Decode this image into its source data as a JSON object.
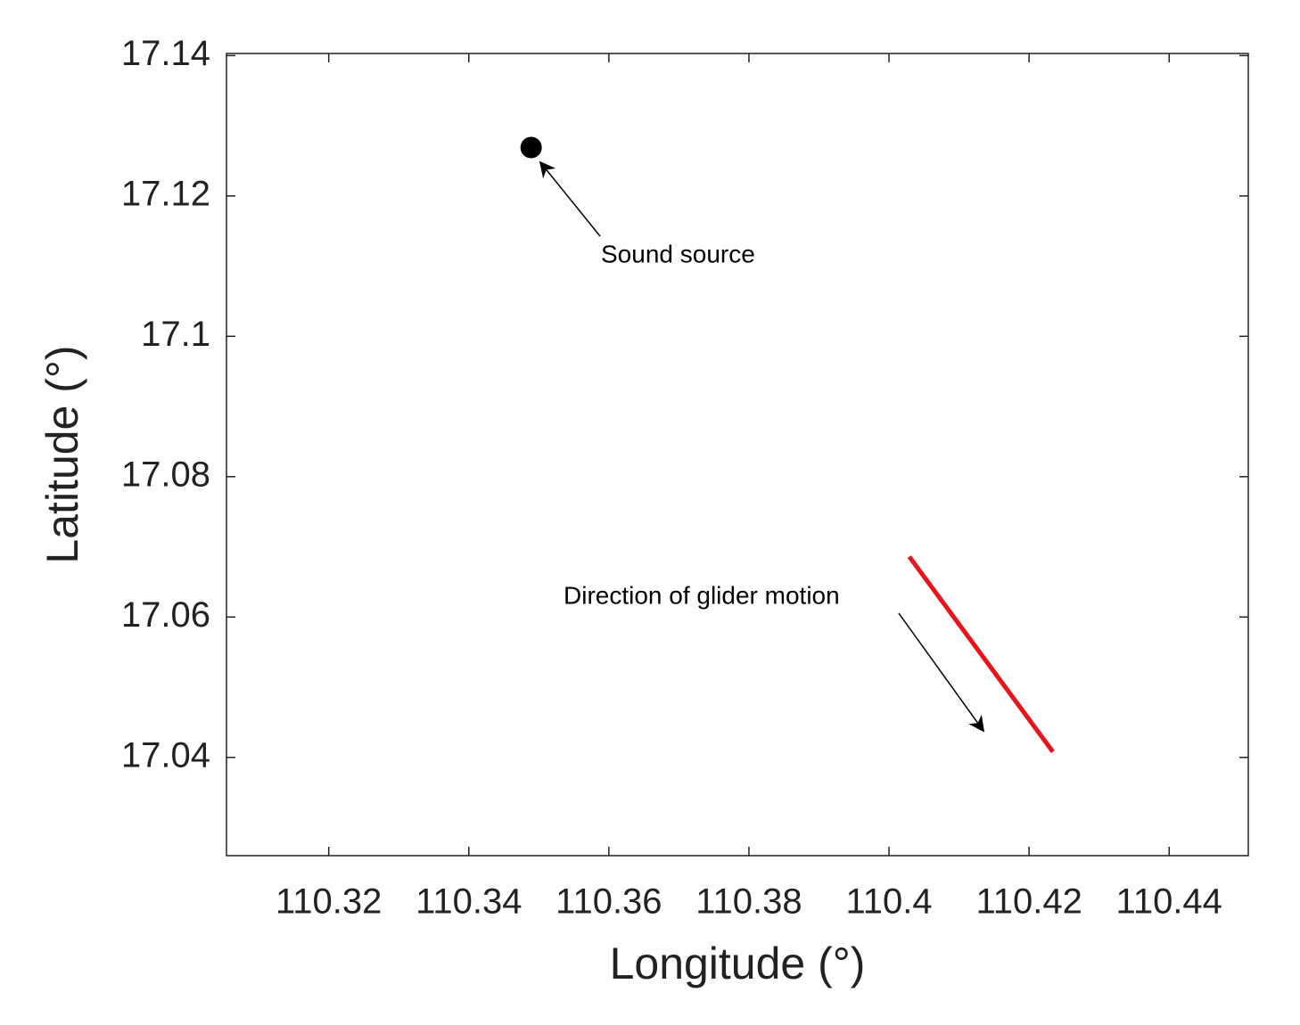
{
  "chart_data": {
    "type": "scatter",
    "xlabel": "Longitude (°)",
    "ylabel": "Latitude (°)",
    "xlim": [
      110.3054,
      110.4513
    ],
    "ylim": [
      17.026,
      17.1403
    ],
    "xticks": [
      110.32,
      110.34,
      110.36,
      110.38,
      110.4,
      110.42,
      110.44
    ],
    "yticks": [
      17.04,
      17.06,
      17.08,
      17.1,
      17.12,
      17.14
    ],
    "grid": false,
    "series": [
      {
        "color": "#000000",
        "marker": "circle",
        "x": [
          110.3489
        ],
        "y": [
          17.1269
        ]
      },
      {
        "color": "#e8141c",
        "marker": "line",
        "x": [
          110.4029,
          110.4234
        ],
        "y": [
          17.0686,
          17.0408
        ]
      }
    ],
    "annotations": [
      {
        "text": "Sound source"
      },
      {
        "text": "Direction of glider motion"
      }
    ]
  }
}
